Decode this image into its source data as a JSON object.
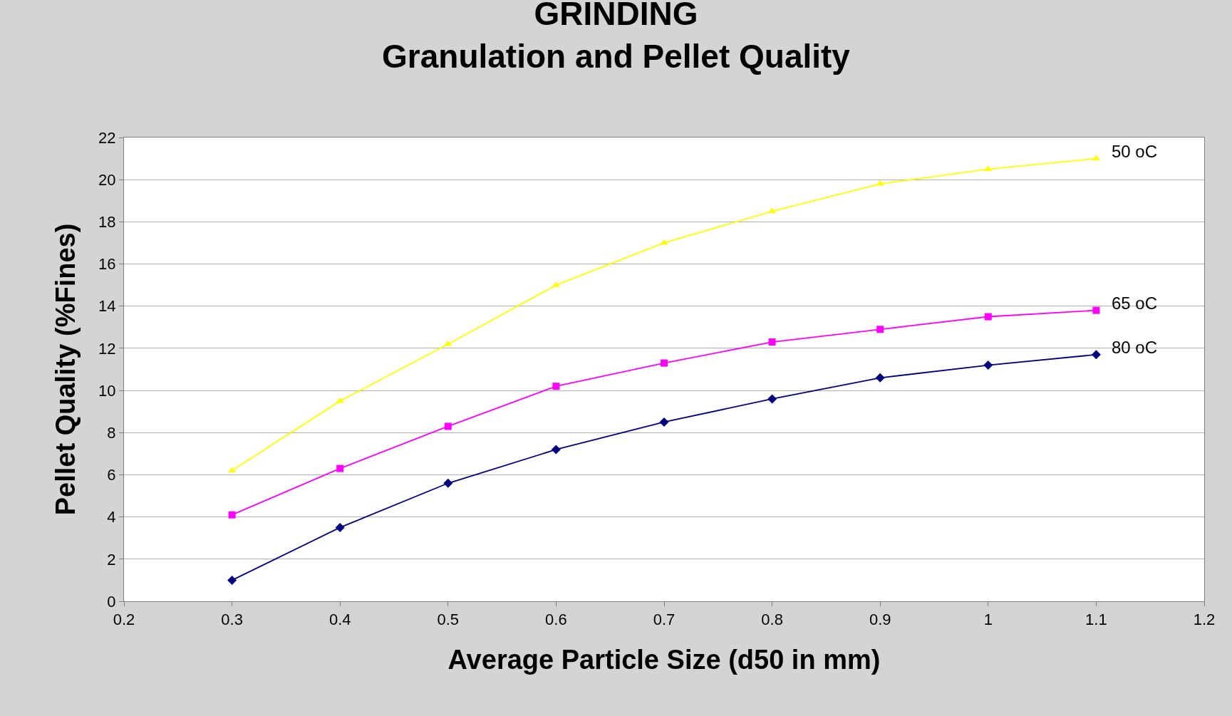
{
  "chart_data": {
    "type": "line",
    "title": "GRINDING\nGranulation and Pellet Quality",
    "xlabel": "Average Particle Size (d50 in mm)",
    "ylabel": "Pellet Quality (%Fines)",
    "x": [
      0.3,
      0.4,
      0.5,
      0.6,
      0.7,
      0.8,
      0.9,
      1.0,
      1.1
    ],
    "series": [
      {
        "name": "50 oC",
        "color": "#ffff00",
        "marker": "triangle",
        "values": [
          6.2,
          9.5,
          12.2,
          15.0,
          17.0,
          18.5,
          19.8,
          20.5,
          21.0
        ]
      },
      {
        "name": "65 oC",
        "color": "#ff00ff",
        "marker": "square",
        "values": [
          4.1,
          6.3,
          8.3,
          10.2,
          11.3,
          12.3,
          12.9,
          13.5,
          13.8
        ]
      },
      {
        "name": "80 oC",
        "color": "#000080",
        "marker": "diamond",
        "values": [
          1.0,
          3.5,
          5.6,
          7.2,
          8.5,
          9.6,
          10.6,
          11.2,
          11.7
        ]
      }
    ],
    "xlim": [
      0.2,
      1.2
    ],
    "xticks": [
      0.2,
      0.3,
      0.4,
      0.5,
      0.6,
      0.7,
      0.8,
      0.9,
      1,
      1.1,
      1.2
    ],
    "ylim": [
      0,
      22
    ],
    "yticks": [
      0,
      2,
      4,
      6,
      8,
      10,
      12,
      14,
      16,
      18,
      20,
      22
    ],
    "grid": "y",
    "line_style": "solid"
  }
}
